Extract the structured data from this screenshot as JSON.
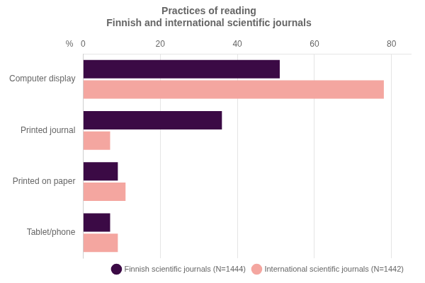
{
  "chart_data": {
    "type": "bar",
    "orientation": "horizontal",
    "title": "Practices of reading",
    "subtitle": "Finnish and international scientific journals",
    "annotations": [
      "%"
    ],
    "categories": [
      "Computer display",
      "Printed journal",
      "Printed on paper",
      "Tablet/phone"
    ],
    "series": [
      {
        "name": "Finnish scientific journals (N=1444)",
        "color": "#3b0a45",
        "values": [
          51,
          36,
          9,
          7
        ]
      },
      {
        "name": "International scientific journals (N=1442)",
        "color": "#f4a6a0",
        "values": [
          78,
          7,
          11,
          9
        ]
      }
    ],
    "xlim": [
      0,
      85
    ],
    "xticks": [
      0,
      20,
      40,
      60,
      80
    ],
    "grid": true,
    "legend": "lower right"
  }
}
